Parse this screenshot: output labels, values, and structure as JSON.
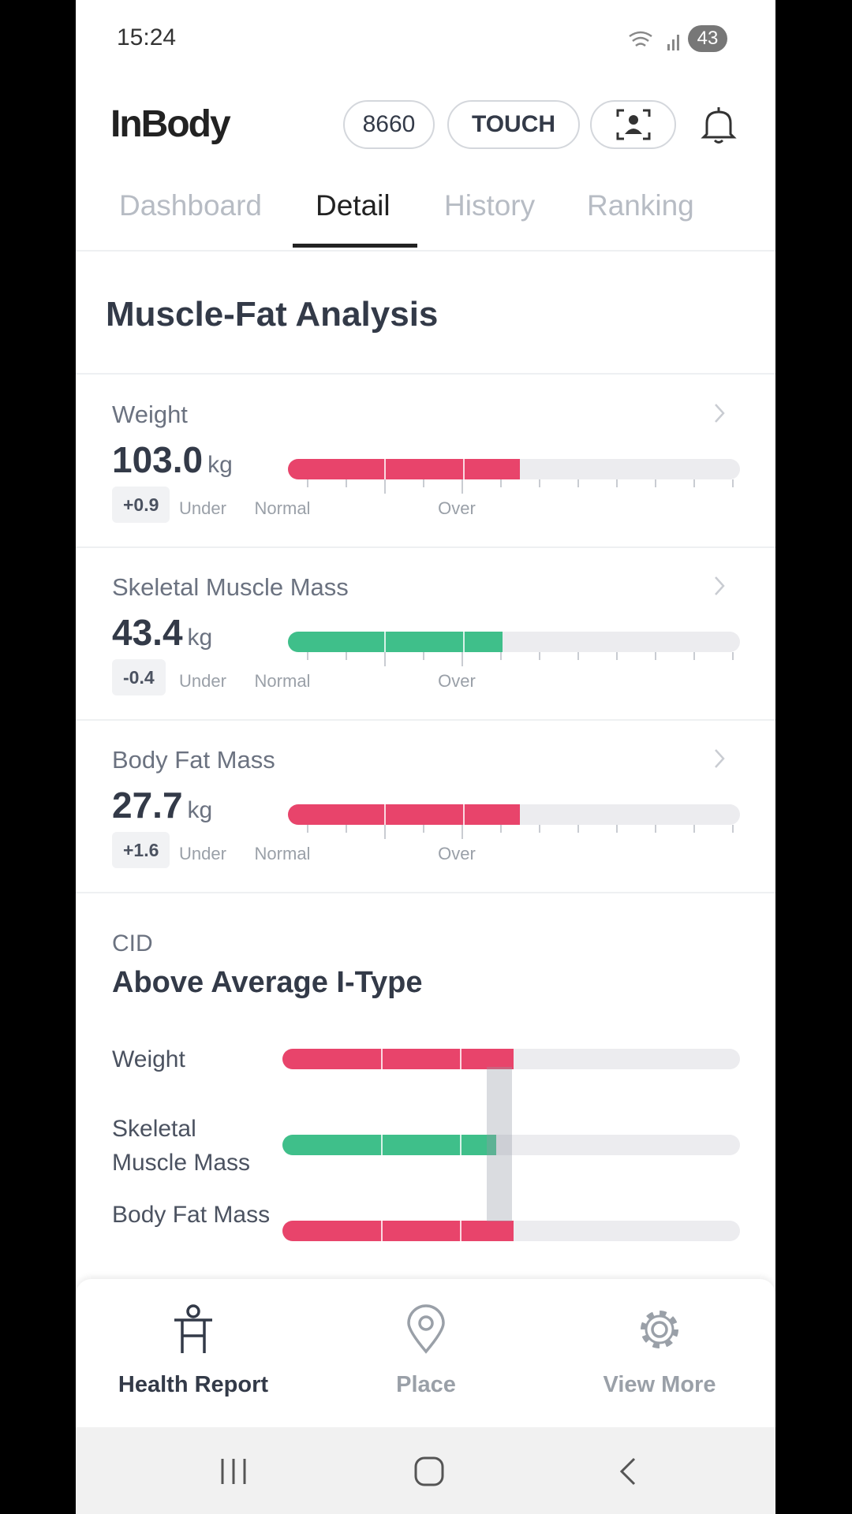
{
  "status_bar": {
    "time": "15:24",
    "battery": "43"
  },
  "header": {
    "logo": "InBody",
    "buttons": [
      "8660",
      "TOUCH"
    ]
  },
  "tabs": [
    "Dashboard",
    "Detail",
    "History",
    "Ranking"
  ],
  "section_title": "Muscle-Fat Analysis",
  "metrics": [
    {
      "label": "Weight",
      "value": "103.0",
      "unit": "kg",
      "change": "+0.9"
    },
    {
      "label": "Skeletal Muscle Mass",
      "value": "43.4",
      "unit": "kg",
      "change": "-0.4"
    },
    {
      "label": "Body Fat Mass",
      "value": "27.7",
      "unit": "kg",
      "change": "+1.6"
    }
  ],
  "scale_labels": [
    "Under",
    "Normal",
    "Over"
  ],
  "cid": {
    "label": "CID",
    "type": "Above Average I-Type",
    "rows": [
      "Weight",
      "Skeletal Muscle Mass",
      "Body Fat Mass"
    ]
  },
  "bottom_nav": [
    "Health Report",
    "Place",
    "View More"
  ]
}
